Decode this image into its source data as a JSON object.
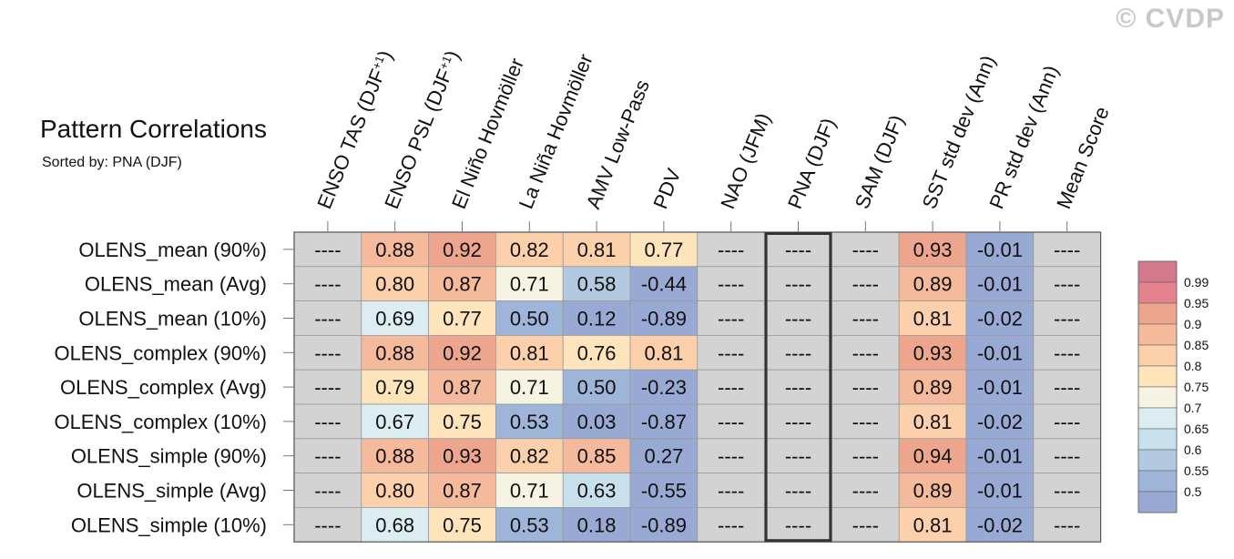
{
  "watermark": "© CVDP",
  "title": "Pattern Correlations",
  "subtitle": "Sorted by: PNA (DJF)",
  "chart_data": {
    "type": "heatmap",
    "columns": [
      {
        "label": "ENSO TAS (DJF",
        "sup": "+1",
        "close": ")"
      },
      {
        "label": "ENSO PSL (DJF",
        "sup": "+1",
        "close": ")"
      },
      {
        "label": "El Niño Hovmöller"
      },
      {
        "label": "La Niña Hovmöller"
      },
      {
        "label": "AMV Low-Pass"
      },
      {
        "label": "PDV"
      },
      {
        "label": "NAO (JFM)"
      },
      {
        "label": "PNA (DJF)"
      },
      {
        "label": "SAM (DJF)"
      },
      {
        "label": "SST std dev (Ann)"
      },
      {
        "label": "PR std dev (Ann)"
      },
      {
        "label": "Mean Score"
      }
    ],
    "rows": [
      {
        "label": "OLENS_mean (90%)",
        "cells": [
          "----",
          "0.88",
          "0.92",
          "0.82",
          "0.81",
          "0.77",
          "----",
          "----",
          "----",
          "0.93",
          "-0.01",
          "----"
        ]
      },
      {
        "label": "OLENS_mean (Avg)",
        "cells": [
          "----",
          "0.80",
          "0.87",
          "0.71",
          "0.58",
          "-0.44",
          "----",
          "----",
          "----",
          "0.89",
          "-0.01",
          "----"
        ]
      },
      {
        "label": "OLENS_mean (10%)",
        "cells": [
          "----",
          "0.69",
          "0.77",
          "0.50",
          "0.12",
          "-0.89",
          "----",
          "----",
          "----",
          "0.81",
          "-0.02",
          "----"
        ]
      },
      {
        "label": "OLENS_complex (90%)",
        "cells": [
          "----",
          "0.88",
          "0.92",
          "0.81",
          "0.76",
          "0.81",
          "----",
          "----",
          "----",
          "0.93",
          "-0.01",
          "----"
        ]
      },
      {
        "label": "OLENS_complex (Avg)",
        "cells": [
          "----",
          "0.79",
          "0.87",
          "0.71",
          "0.50",
          "-0.23",
          "----",
          "----",
          "----",
          "0.89",
          "-0.01",
          "----"
        ]
      },
      {
        "label": "OLENS_complex (10%)",
        "cells": [
          "----",
          "0.67",
          "0.75",
          "0.53",
          "0.03",
          "-0.87",
          "----",
          "----",
          "----",
          "0.81",
          "-0.02",
          "----"
        ]
      },
      {
        "label": "OLENS_simple (90%)",
        "cells": [
          "----",
          "0.88",
          "0.93",
          "0.82",
          "0.85",
          "0.27",
          "----",
          "----",
          "----",
          "0.94",
          "-0.01",
          "----"
        ]
      },
      {
        "label": "OLENS_simple (Avg)",
        "cells": [
          "----",
          "0.80",
          "0.87",
          "0.71",
          "0.63",
          "-0.55",
          "----",
          "----",
          "----",
          "0.89",
          "-0.01",
          "----"
        ]
      },
      {
        "label": "OLENS_simple (10%)",
        "cells": [
          "----",
          "0.68",
          "0.75",
          "0.53",
          "0.18",
          "-0.89",
          "----",
          "----",
          "----",
          "0.81",
          "-0.02",
          "----"
        ]
      }
    ],
    "highlight_column": "PNA (DJF)",
    "missing_color": "#d3d3d3",
    "colorbar": {
      "labels": [
        "0.99",
        "0.95",
        "0.9",
        "0.85",
        "0.8",
        "0.75",
        "0.7",
        "0.65",
        "0.6",
        "0.55",
        "0.5"
      ],
      "levels": [
        0.99,
        0.95,
        0.9,
        0.85,
        0.8,
        0.75,
        0.7,
        0.65,
        0.6,
        0.55,
        0.5
      ],
      "colors": [
        "#d4788e",
        "#e4838d",
        "#eea58e",
        "#f5b99b",
        "#fbd0aa",
        "#fde4bb",
        "#f7f3e2",
        "#dcedf1",
        "#c8e0ec",
        "#b2c9e0",
        "#9fb4d9",
        "#98a9d4"
      ]
    }
  }
}
